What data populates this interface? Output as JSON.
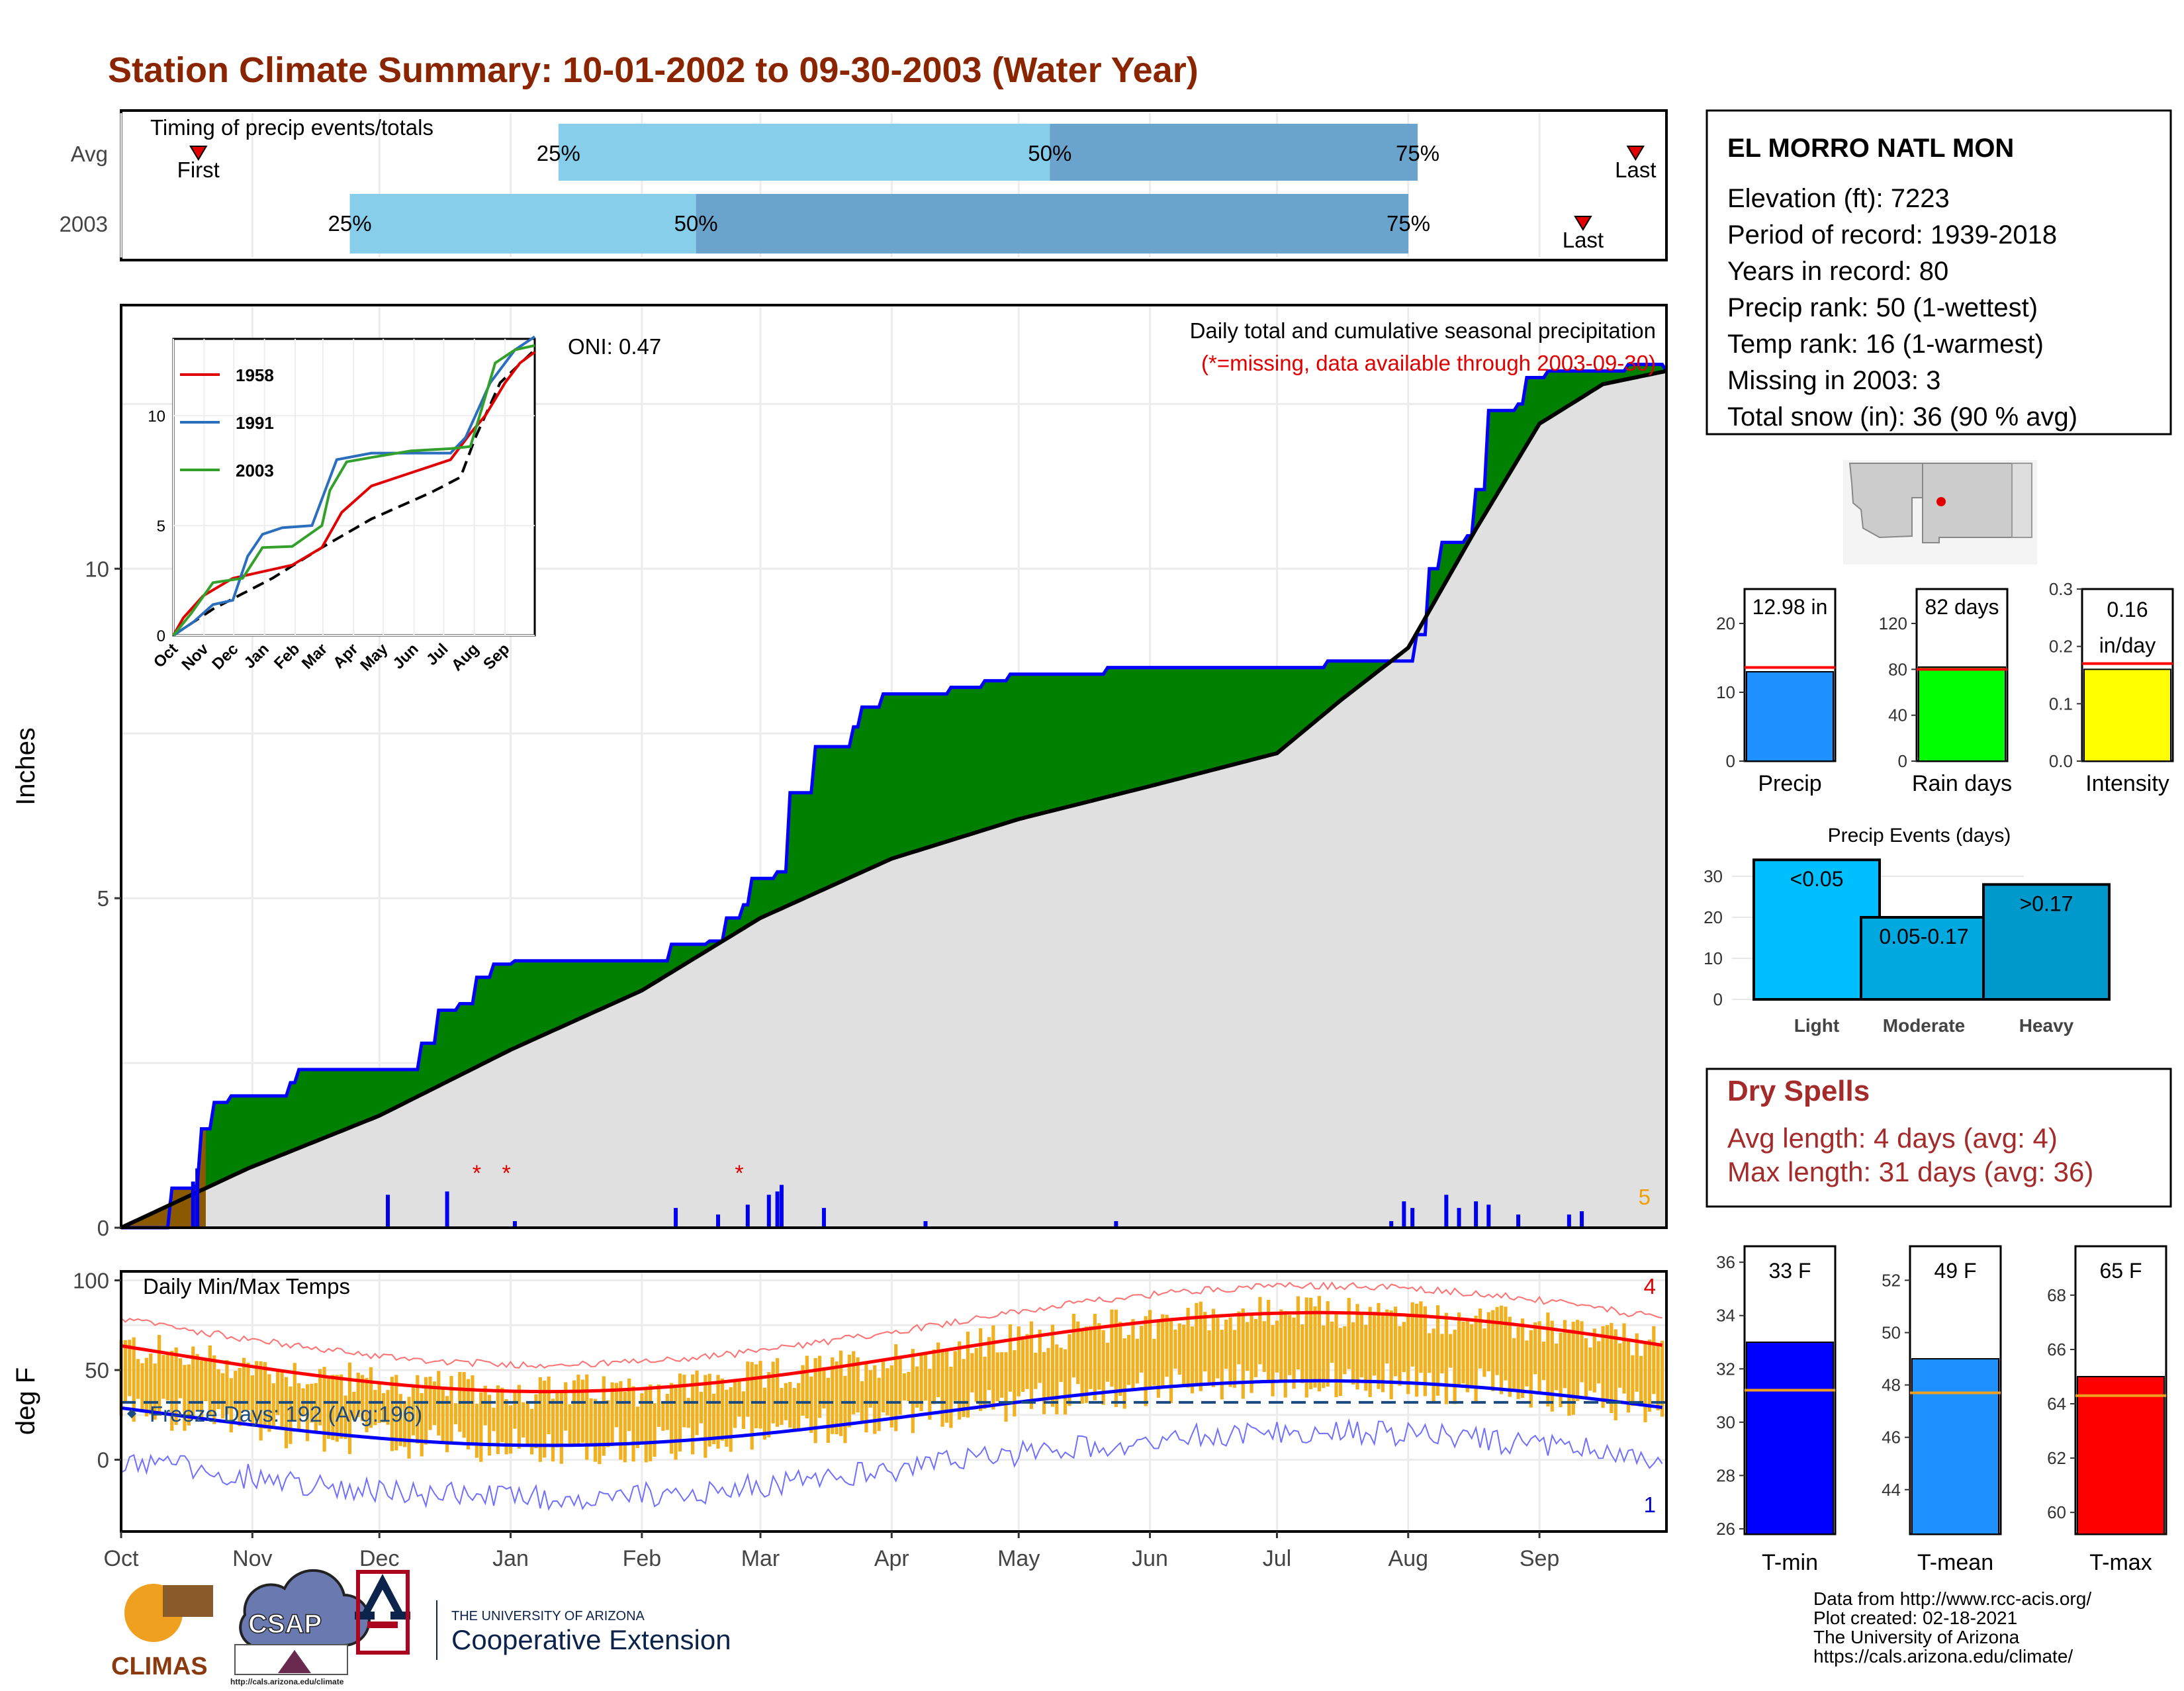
{
  "title": "Station Climate Summary: 10-01-2002 to 09-30-2003 (Water Year)",
  "colors": {
    "title": "#8b2500",
    "light_blue": "#87ceeb",
    "mid_blue": "#6aa3cc",
    "green": "#008000",
    "brown": "#8b5a00",
    "gray": "#e0e0e0",
    "precip_bar": "#1e90ff",
    "rain_days": "#00ff00",
    "intensity": "#ffff00",
    "events": [
      "#00bfff",
      "#00a8e0",
      "#0099cc"
    ],
    "tmin": "#0000ff",
    "tmean": "#1e90ff",
    "tmax": "#ff0000",
    "temp_bar": "#f0b020",
    "dry": "#a52a2a"
  },
  "timing_panel": {
    "label": "Timing of precip events/totals",
    "rows": [
      {
        "name": "Avg",
        "first_label": "First",
        "last_label": "Last",
        "first_x": 0.05,
        "last_x": 0.98,
        "q25": 0.283,
        "q50": 0.601,
        "q75": 0.839,
        "q25_label": "25%",
        "q50_label": "50%",
        "q75_label": "75%"
      },
      {
        "name": "2003",
        "first_label": "First",
        "last_label": "Last",
        "first_x": 0.0,
        "last_x": 0.946,
        "q25": 0.148,
        "q50": 0.372,
        "q75": 0.833,
        "q25_label": "25%",
        "q50_label": "50%",
        "q75_label": "75%"
      }
    ]
  },
  "precip_panel": {
    "ylabel": "Inches",
    "yticks": [
      "0",
      "5",
      "10"
    ],
    "oni": "ONI: 0.47",
    "title": "Daily total and cumulative seasonal precipitation",
    "note": "(*=missing, data available through 2003-09-30)",
    "count_label": "5"
  },
  "inset": {
    "legend": [
      "1958",
      "1991",
      "2003"
    ],
    "yticks": [
      "0",
      "5",
      "10"
    ],
    "months": [
      "Oct",
      "Nov",
      "Dec",
      "Jan",
      "Feb",
      "Mar",
      "Apr",
      "May",
      "Jun",
      "Jul",
      "Aug",
      "Sep"
    ]
  },
  "temp_panel": {
    "title": "Daily Min/Max Temps",
    "ylabel": "deg F",
    "yticks": [
      "0",
      "50",
      "100"
    ],
    "freeze_label": "Freeze Days: 192 (Avg:196)",
    "max_count": "4",
    "min_count": "1"
  },
  "x_months": [
    "Oct",
    "Nov",
    "Dec",
    "Jan",
    "Feb",
    "Mar",
    "Apr",
    "May",
    "Jun",
    "Jul",
    "Aug",
    "Sep"
  ],
  "station": {
    "name": "EL MORRO NATL MON",
    "lines": [
      "Elevation (ft): 7223",
      "Period of record: 1939-2018",
      "Years in record: 80",
      "Precip rank: 50 (1-wettest)",
      "Temp rank: 16 (1-warmest)",
      "Missing in 2003: 3",
      "Total snow (in): 36 (90 % avg)"
    ]
  },
  "small_bars": [
    {
      "label": "Precip",
      "value_text": "12.98 in",
      "value": 12.98,
      "avg": 13.6,
      "ymax": 25,
      "ticks": [
        "0",
        "10",
        "20"
      ],
      "tickvals": [
        0,
        10,
        20
      ]
    },
    {
      "label": "Rain days",
      "value_text": "82 days",
      "value": 82,
      "avg": 80,
      "ymax": 150,
      "ticks": [
        "0",
        "40",
        "80",
        "120"
      ],
      "tickvals": [
        0,
        40,
        80,
        120
      ]
    },
    {
      "label": "Intensity",
      "value_text": "0.16 in/day",
      "value": 0.16,
      "avg": 0.17,
      "ymax": 0.3,
      "ticks": [
        "0.0",
        "0.1",
        "0.2",
        "0.3"
      ],
      "tickvals": [
        0,
        0.1,
        0.2,
        0.3
      ]
    }
  ],
  "precip_events": {
    "title": "Precip Events (days)",
    "categories": [
      "Light",
      "Moderate",
      "Heavy"
    ],
    "values": [
      34,
      20,
      28
    ],
    "labels": [
      "<0.05",
      "0.05-0.17",
      ">0.17"
    ],
    "yticks": [
      "0",
      "10",
      "20",
      "30"
    ]
  },
  "dry_spells": {
    "title": "Dry Spells",
    "avg": "Avg length: 4 days (avg: 4)",
    "max": "Max length: 31 days (avg: 36)"
  },
  "temp_bars": [
    {
      "label": "T-min",
      "value_text": "33 F",
      "value": 33,
      "avg": 31.2,
      "ymin": 25.8,
      "ymax": 36.6,
      "ticks": [
        "26",
        "28",
        "30",
        "32",
        "34",
        "36"
      ],
      "tickvals": [
        26,
        28,
        30,
        32,
        34,
        36
      ]
    },
    {
      "label": "T-mean",
      "value_text": "49 F",
      "value": 49,
      "avg": 47.7,
      "ymin": 42.3,
      "ymax": 53.3,
      "ticks": [
        "44",
        "46",
        "48",
        "50",
        "52"
      ],
      "tickvals": [
        44,
        46,
        48,
        50,
        52
      ]
    },
    {
      "label": "T-max",
      "value_text": "65 F",
      "value": 65,
      "avg": 64.3,
      "ymin": 59.2,
      "ymax": 69.8,
      "ticks": [
        "60",
        "62",
        "64",
        "66",
        "68"
      ],
      "tickvals": [
        60,
        62,
        64,
        66,
        68
      ]
    }
  ],
  "credits": [
    "Data from http://www.rcc-acis.org/",
    "Plot created: 02-18-2021",
    "The University of Arizona",
    "https://cals.arizona.edu/climate/"
  ],
  "logos": {
    "climas": "CLIMAS",
    "csap": "CSAP",
    "csap_url": "http://cals.arizona.edu/climate",
    "ua_line1": "THE UNIVERSITY OF ARIZONA",
    "ua_line2": "Cooperative Extension"
  },
  "chart_data": {
    "type": "area",
    "title": "Daily total and cumulative seasonal precipitation",
    "ylabel": "Inches",
    "ylim": [
      0,
      14
    ],
    "x_months": [
      "Oct",
      "Nov",
      "Dec",
      "Jan",
      "Feb",
      "Mar",
      "Apr",
      "May",
      "Jun",
      "Jul",
      "Aug",
      "Sep"
    ],
    "cumulative_2003_by_day": [
      [
        0,
        0
      ],
      [
        12,
        0.6
      ],
      [
        18,
        0.65
      ],
      [
        19,
        1.5
      ],
      [
        22,
        1.9
      ],
      [
        26,
        2.0
      ],
      [
        40,
        2.2
      ],
      [
        42,
        2.4
      ],
      [
        70,
        2.4
      ],
      [
        71,
        2.8
      ],
      [
        75,
        3.3
      ],
      [
        80,
        3.4
      ],
      [
        84,
        3.8
      ],
      [
        88,
        4.0
      ],
      [
        93,
        4.05
      ],
      [
        107,
        4.05
      ],
      [
        112,
        4.05
      ],
      [
        126,
        4.05
      ],
      [
        130,
        4.3
      ],
      [
        139,
        4.35
      ],
      [
        143,
        4.7
      ],
      [
        147,
        4.9
      ],
      [
        149,
        5.3
      ],
      [
        155,
        5.4
      ],
      [
        158,
        6.6
      ],
      [
        164,
        7.3
      ],
      [
        170,
        7.3
      ],
      [
        173,
        7.6
      ],
      [
        175,
        7.9
      ],
      [
        180,
        8.1
      ],
      [
        190,
        8.1
      ],
      [
        196,
        8.2
      ],
      [
        204,
        8.3
      ],
      [
        210,
        8.4
      ],
      [
        233,
        8.5
      ],
      [
        260,
        8.5
      ],
      [
        270,
        8.5
      ],
      [
        285,
        8.6
      ],
      [
        298,
        8.6
      ],
      [
        303,
        8.6
      ],
      [
        306,
        9.0
      ],
      [
        309,
        10.0
      ],
      [
        312,
        10.4
      ],
      [
        318,
        10.5
      ],
      [
        320,
        11.2
      ],
      [
        323,
        12.4
      ],
      [
        330,
        12.5
      ],
      [
        332,
        12.9
      ],
      [
        337,
        13.0
      ],
      [
        343,
        13.0
      ],
      [
        352,
        13.0
      ],
      [
        356,
        13.1
      ],
      [
        365,
        13.0
      ]
    ],
    "average_cumulative_by_day": [
      [
        0,
        0
      ],
      [
        30,
        0.9
      ],
      [
        61,
        1.7
      ],
      [
        92,
        2.7
      ],
      [
        123,
        3.6
      ],
      [
        151,
        4.7
      ],
      [
        182,
        5.6
      ],
      [
        212,
        6.2
      ],
      [
        243,
        6.7
      ],
      [
        273,
        7.2
      ],
      [
        288,
        8.0
      ],
      [
        304,
        8.8
      ],
      [
        320,
        10.6
      ],
      [
        335,
        12.2
      ],
      [
        350,
        12.8
      ],
      [
        365,
        13.0
      ]
    ],
    "daily_precip": [
      [
        17,
        0.7
      ],
      [
        18,
        0.9
      ],
      [
        63,
        0.5
      ],
      [
        77,
        0.55
      ],
      [
        93,
        0.1
      ],
      [
        131,
        0.3
      ],
      [
        141,
        0.2
      ],
      [
        148,
        0.35
      ],
      [
        153,
        0.5
      ],
      [
        155,
        0.55
      ],
      [
        156,
        0.65
      ],
      [
        166,
        0.3
      ],
      [
        190,
        0.1
      ],
      [
        235,
        0.1
      ],
      [
        300,
        0.1
      ],
      [
        303,
        0.4
      ],
      [
        305,
        0.3
      ],
      [
        313,
        0.5
      ],
      [
        316,
        0.3
      ],
      [
        320,
        0.4
      ],
      [
        323,
        0.35
      ],
      [
        330,
        0.2
      ],
      [
        342,
        0.2
      ],
      [
        345,
        0.25
      ]
    ],
    "missing_days": [
      84,
      91,
      146
    ]
  }
}
